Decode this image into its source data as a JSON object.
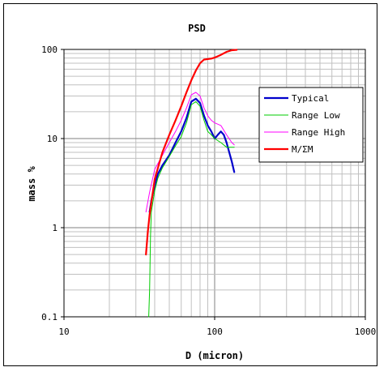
{
  "chart_data": {
    "type": "line",
    "title": "PSD",
    "xlabel": "D (micron)",
    "ylabel": "mass %",
    "x_scale": "log",
    "y_scale": "log",
    "xlim": [
      10,
      1000
    ],
    "ylim": [
      0.1,
      100
    ],
    "x_ticks": [
      "10",
      "100",
      "1000"
    ],
    "y_ticks": [
      "0.1",
      "1",
      "10",
      "100"
    ],
    "grid": true,
    "legend": "right",
    "series": [
      {
        "name": "Typical",
        "color": "#0000cc",
        "width": 2.2,
        "points": [
          [
            37,
            1.5
          ],
          [
            38,
            2.0
          ],
          [
            40,
            3.0
          ],
          [
            42,
            4.0
          ],
          [
            45,
            5.0
          ],
          [
            50,
            6.5
          ],
          [
            55,
            9
          ],
          [
            60,
            12
          ],
          [
            65,
            17
          ],
          [
            70,
            26
          ],
          [
            75,
            28
          ],
          [
            80,
            25
          ],
          [
            85,
            18
          ],
          [
            90,
            14
          ],
          [
            95,
            12
          ],
          [
            100,
            10
          ],
          [
            105,
            11
          ],
          [
            110,
            12
          ],
          [
            115,
            11
          ],
          [
            120,
            9
          ],
          [
            125,
            7
          ],
          [
            130,
            5.5
          ],
          [
            135,
            4.2
          ]
        ]
      },
      {
        "name": "Range Low",
        "color": "#00cc00",
        "width": 1,
        "points": [
          [
            36.5,
            0.1
          ],
          [
            37,
            0.2
          ],
          [
            37.5,
            0.8
          ],
          [
            38,
            1.5
          ],
          [
            40,
            2.6
          ],
          [
            42,
            3.6
          ],
          [
            45,
            4.7
          ],
          [
            50,
            6.3
          ],
          [
            55,
            8.3
          ],
          [
            60,
            10.5
          ],
          [
            65,
            15
          ],
          [
            70,
            24
          ],
          [
            75,
            26
          ],
          [
            80,
            23
          ],
          [
            85,
            16
          ],
          [
            90,
            12
          ],
          [
            95,
            11
          ],
          [
            100,
            10
          ],
          [
            110,
            9
          ],
          [
            120,
            8
          ],
          [
            130,
            8
          ],
          [
            135,
            8
          ]
        ]
      },
      {
        "name": "Range High",
        "color": "#ff00ff",
        "width": 1,
        "points": [
          [
            35,
            1.5
          ],
          [
            37,
            2.5
          ],
          [
            40,
            4.5
          ],
          [
            45,
            6.5
          ],
          [
            50,
            9
          ],
          [
            55,
            12
          ],
          [
            60,
            16
          ],
          [
            65,
            22
          ],
          [
            70,
            31
          ],
          [
            75,
            33
          ],
          [
            80,
            30
          ],
          [
            85,
            22
          ],
          [
            90,
            18
          ],
          [
            95,
            16
          ],
          [
            100,
            15
          ],
          [
            110,
            14
          ],
          [
            120,
            11
          ],
          [
            130,
            9
          ],
          [
            135,
            8.5
          ]
        ]
      },
      {
        "name": "M/ΣM",
        "color": "#ff0000",
        "width": 2.2,
        "points": [
          [
            35,
            0.5
          ],
          [
            36,
            0.9
          ],
          [
            37,
            1.4
          ],
          [
            40,
            3.5
          ],
          [
            45,
            7
          ],
          [
            50,
            11
          ],
          [
            55,
            16
          ],
          [
            60,
            23
          ],
          [
            65,
            33
          ],
          [
            70,
            45
          ],
          [
            75,
            58
          ],
          [
            80,
            70
          ],
          [
            85,
            77
          ],
          [
            90,
            78
          ],
          [
            95,
            79
          ],
          [
            100,
            81
          ],
          [
            110,
            87
          ],
          [
            120,
            94
          ],
          [
            130,
            98
          ],
          [
            140,
            99
          ]
        ]
      }
    ]
  }
}
